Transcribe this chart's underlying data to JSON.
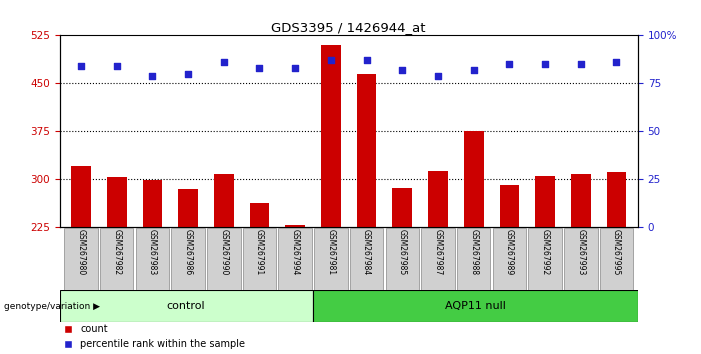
{
  "title": "GDS3395 / 1426944_at",
  "samples": [
    "GSM267980",
    "GSM267982",
    "GSM267983",
    "GSM267986",
    "GSM267990",
    "GSM267991",
    "GSM267994",
    "GSM267981",
    "GSM267984",
    "GSM267985",
    "GSM267987",
    "GSM267988",
    "GSM267989",
    "GSM267992",
    "GSM267993",
    "GSM267995"
  ],
  "counts": [
    320,
    302,
    298,
    284,
    308,
    262,
    228,
    510,
    465,
    286,
    312,
    375,
    290,
    305,
    308,
    310
  ],
  "percentiles": [
    84,
    84,
    79,
    80,
    86,
    83,
    83,
    87,
    87,
    82,
    79,
    82,
    85,
    85,
    85,
    86
  ],
  "control_count": 7,
  "ylim_left": [
    225,
    525
  ],
  "ylim_right": [
    0,
    100
  ],
  "yticks_left": [
    225,
    300,
    375,
    450,
    525
  ],
  "yticks_right": [
    0,
    25,
    50,
    75,
    100
  ],
  "bar_color": "#cc0000",
  "dot_color": "#2222cc",
  "control_label": "control",
  "aqp_label": "AQP11 null",
  "control_bg": "#ccffcc",
  "aqp_bg": "#44cc44",
  "group_label": "genotype/variation",
  "legend_bar": "count",
  "legend_dot": "percentile rank within the sample",
  "tick_color_left": "#cc0000",
  "tick_color_right": "#2222cc",
  "xlabel_bg": "#d0d0d0",
  "grid_dotted_at": [
    300,
    375,
    450
  ],
  "fig_width": 7.01,
  "fig_height": 3.54,
  "fig_dpi": 100
}
